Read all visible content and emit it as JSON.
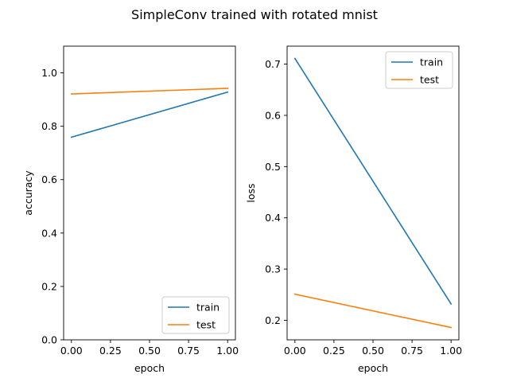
{
  "figure": {
    "title": "SimpleConv trained with rotated mnist"
  },
  "chart_data": [
    {
      "type": "line",
      "xlabel": "epoch",
      "ylabel": "accuracy",
      "xlim": [
        -0.05,
        1.05
      ],
      "ylim": [
        0.0,
        1.1
      ],
      "xticks": [
        0.0,
        0.25,
        0.5,
        0.75,
        1.0
      ],
      "xtick_labels": [
        "0.00",
        "0.25",
        "0.50",
        "0.75",
        "1.00"
      ],
      "yticks": [
        0.0,
        0.2,
        0.4,
        0.6,
        0.8,
        1.0
      ],
      "ytick_labels": [
        "0.0",
        "0.2",
        "0.4",
        "0.6",
        "0.8",
        "1.0"
      ],
      "grid": false,
      "legend_position": "lower-right",
      "series": [
        {
          "name": "train",
          "color": "#1f77b4",
          "x": [
            0,
            1
          ],
          "y": [
            0.759,
            0.928
          ]
        },
        {
          "name": "test",
          "color": "#ff7f0e",
          "x": [
            0,
            1
          ],
          "y": [
            0.921,
            0.942
          ]
        }
      ]
    },
    {
      "type": "line",
      "xlabel": "epoch",
      "ylabel": "loss",
      "xlim": [
        -0.05,
        1.05
      ],
      "ylim": [
        0.162,
        0.735
      ],
      "xticks": [
        0.0,
        0.25,
        0.5,
        0.75,
        1.0
      ],
      "xtick_labels": [
        "0.00",
        "0.25",
        "0.50",
        "0.75",
        "1.00"
      ],
      "yticks": [
        0.2,
        0.3,
        0.4,
        0.5,
        0.6,
        0.7
      ],
      "ytick_labels": [
        "0.2",
        "0.3",
        "0.4",
        "0.5",
        "0.6",
        "0.7"
      ],
      "grid": false,
      "legend_position": "upper-right",
      "series": [
        {
          "name": "train",
          "color": "#1f77b4",
          "x": [
            0,
            1
          ],
          "y": [
            0.711,
            0.232
          ]
        },
        {
          "name": "test",
          "color": "#ff7f0e",
          "x": [
            0,
            1
          ],
          "y": [
            0.251,
            0.186
          ]
        }
      ]
    }
  ]
}
